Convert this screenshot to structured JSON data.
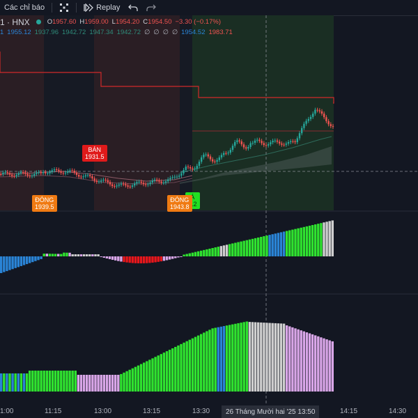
{
  "toolbar": {
    "indicators_label": "Các chỉ báo",
    "replay_label": "Replay"
  },
  "legend": {
    "symbol": "1 · HNX",
    "open_prefix": "O",
    "open": "1957.60",
    "high_prefix": "H",
    "high": "1959.00",
    "low_prefix": "L",
    "low": "1954.20",
    "close_prefix": "C",
    "close": "1954.50",
    "change": "−3.30 (−0.17%)",
    "row2_prefix": "1",
    "row2_values": [
      "1955.12",
      "1937.96",
      "1942.72",
      "1947.34",
      "1942.72",
      "∅",
      "∅",
      "∅",
      "∅",
      "1954.52",
      "1983.71"
    ]
  },
  "signals": {
    "sell": {
      "label": "BÁN",
      "value": "1931.5"
    },
    "close1": {
      "label": "ĐÓNG",
      "value": "1939.5"
    },
    "close2": {
      "label": "ĐÓNG",
      "value": "1943.8"
    },
    "buy": {
      "label": "Á",
      "value": "2.2"
    }
  },
  "time_axis": {
    "labels": [
      "1:00",
      "11:15",
      "13:00",
      "13:15",
      "13:30",
      "14:15",
      "14:30"
    ],
    "crosshair": "26 Tháng Mười hai '25   13:50"
  },
  "colors": {
    "up": "#26a69a",
    "down": "#ef5350",
    "green_bar": "#2fe32f",
    "blue_bar": "#2a84d6",
    "pink_bar": "#d9a6e8",
    "gray_bar": "#cfcfcf",
    "red_bar": "#e8161b"
  }
}
